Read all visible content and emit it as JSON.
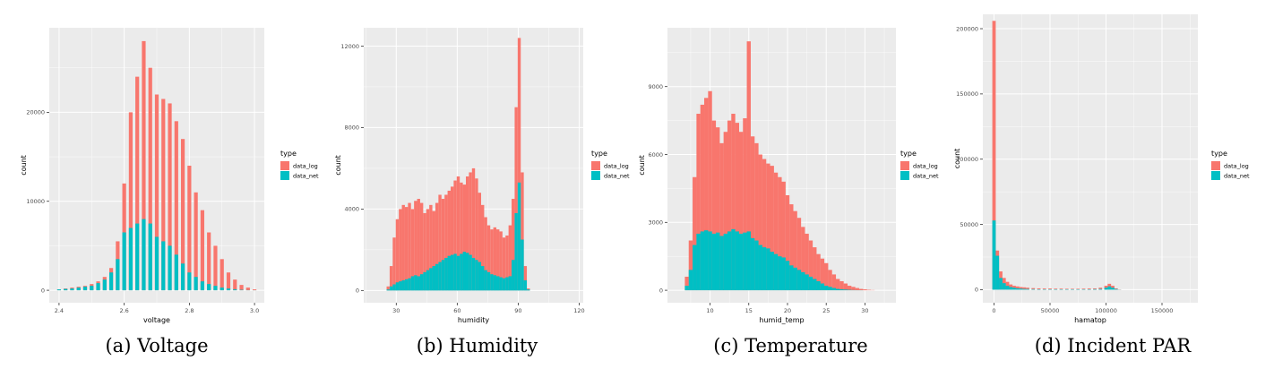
{
  "colors": {
    "data_log": "#F8766D",
    "data_net": "#00BFC4",
    "panel_bg": "#EBEBEB",
    "grid": "#FFFFFF"
  },
  "chart_data": [
    {
      "type": "bar",
      "caption": "(a) Voltage",
      "xlabel": "voltage",
      "ylabel": "count",
      "xlim": [
        2.37,
        3.03
      ],
      "ylim": [
        -1400,
        29500
      ],
      "x_ticks": [
        2.4,
        2.6,
        2.8,
        3.0
      ],
      "x_tick_labels": [
        "2.4",
        "2.6",
        "2.8",
        "3.0"
      ],
      "y_ticks": [
        0,
        10000,
        20000
      ],
      "y_tick_labels": [
        "0",
        "10000",
        "20000"
      ],
      "legend": {
        "title": "type",
        "entries": [
          "data_log",
          "data_net"
        ],
        "placement": "right"
      },
      "x": [
        2.4,
        2.42,
        2.44,
        2.46,
        2.48,
        2.5,
        2.52,
        2.54,
        2.56,
        2.58,
        2.6,
        2.62,
        2.64,
        2.66,
        2.68,
        2.7,
        2.72,
        2.74,
        2.76,
        2.78,
        2.8,
        2.82,
        2.84,
        2.86,
        2.88,
        2.9,
        2.92,
        2.94,
        2.96,
        2.98,
        3.0
      ],
      "series": [
        {
          "name": "data_log",
          "values": [
            100,
            200,
            300,
            400,
            500,
            700,
            1000,
            1500,
            2500,
            5500,
            12000,
            20000,
            24000,
            28000,
            25000,
            22000,
            21500,
            21000,
            19000,
            17000,
            14000,
            11000,
            9000,
            6500,
            5000,
            3500,
            2000,
            1200,
            600,
            300,
            100
          ]
        },
        {
          "name": "data_net",
          "values": [
            100,
            150,
            200,
            300,
            400,
            500,
            800,
            1200,
            2000,
            3500,
            6500,
            7000,
            7500,
            8000,
            7500,
            6000,
            5500,
            5000,
            4000,
            3000,
            2000,
            1500,
            1000,
            700,
            500,
            300,
            200,
            100,
            50,
            20,
            10
          ]
        }
      ]
    },
    {
      "type": "bar",
      "caption": "(b) Humidity",
      "xlabel": "humidity",
      "ylabel": "count",
      "xlim": [
        14,
        122
      ],
      "ylim": [
        -600,
        12900
      ],
      "x_ticks": [
        30,
        60,
        90,
        120
      ],
      "x_tick_labels": [
        "30",
        "60",
        "90",
        "120"
      ],
      "y_ticks": [
        0,
        4000,
        8000,
        12000
      ],
      "y_tick_labels": [
        "0",
        "4000",
        "8000",
        "12000"
      ],
      "legend": {
        "title": "type",
        "entries": [
          "data_log",
          "data_net"
        ],
        "placement": "right"
      },
      "x": [
        26,
        27.5,
        29,
        30.5,
        32,
        33.5,
        35,
        36.5,
        38,
        39.5,
        41,
        42.5,
        44,
        45.5,
        47,
        48.5,
        50,
        51.5,
        53,
        54.5,
        56,
        57.5,
        59,
        60.5,
        62,
        63.5,
        65,
        66.5,
        68,
        69.5,
        71,
        72.5,
        74,
        75.5,
        77,
        78.5,
        80,
        81.5,
        83,
        84.5,
        86,
        87.5,
        89,
        90.5,
        92,
        93.5,
        95
      ],
      "series": [
        {
          "name": "data_log",
          "values": [
            200,
            1200,
            2600,
            3500,
            4000,
            4200,
            4100,
            4300,
            4000,
            4400,
            4500,
            4300,
            3800,
            4000,
            4200,
            3900,
            4300,
            4700,
            4500,
            4700,
            4900,
            5100,
            5400,
            5600,
            5300,
            5200,
            5600,
            5800,
            6000,
            5500,
            4800,
            4200,
            3600,
            3200,
            3000,
            3100,
            3000,
            2900,
            2600,
            2700,
            3200,
            4500,
            9000,
            12400,
            5800,
            1200,
            100
          ]
        },
        {
          "name": "data_net",
          "values": [
            50,
            200,
            300,
            400,
            450,
            500,
            550,
            600,
            700,
            750,
            700,
            800,
            900,
            1000,
            1100,
            1200,
            1300,
            1400,
            1500,
            1600,
            1700,
            1750,
            1800,
            1700,
            1800,
            1900,
            1850,
            1750,
            1600,
            1500,
            1400,
            1200,
            1000,
            900,
            800,
            750,
            700,
            650,
            600,
            650,
            700,
            1500,
            3800,
            5300,
            2500,
            500,
            50
          ]
        }
      ]
    },
    {
      "type": "bar",
      "caption": "(c) Temperature",
      "xlabel": "humid_temp",
      "ylabel": "count",
      "xlim": [
        4.5,
        34
      ],
      "ylim": [
        -550,
        11600
      ],
      "x_ticks": [
        10,
        15,
        20,
        25,
        30
      ],
      "x_tick_labels": [
        "10",
        "15",
        "20",
        "25",
        "30"
      ],
      "y_ticks": [
        0,
        3000,
        6000,
        9000
      ],
      "y_tick_labels": [
        "0",
        "3000",
        "6000",
        "9000"
      ],
      "legend": {
        "title": "type",
        "entries": [
          "data_log",
          "data_net"
        ],
        "placement": "right"
      },
      "x": [
        7,
        7.5,
        8,
        8.5,
        9,
        9.5,
        10,
        10.5,
        11,
        11.5,
        12,
        12.5,
        13,
        13.5,
        14,
        14.5,
        15,
        15.5,
        16,
        16.5,
        17,
        17.5,
        18,
        18.5,
        19,
        19.5,
        20,
        20.5,
        21,
        21.5,
        22,
        22.5,
        23,
        23.5,
        24,
        24.5,
        25,
        25.5,
        26,
        26.5,
        27,
        27.5,
        28,
        28.5,
        29,
        29.5,
        30,
        30.5,
        31
      ],
      "series": [
        {
          "name": "data_log",
          "values": [
            600,
            2200,
            5000,
            7800,
            8200,
            8500,
            8800,
            7500,
            7200,
            6500,
            7000,
            7500,
            7800,
            7400,
            7000,
            7600,
            11000,
            6800,
            6500,
            6000,
            5800,
            5600,
            5500,
            5200,
            5000,
            4800,
            4200,
            3800,
            3500,
            3200,
            2800,
            2500,
            2200,
            1900,
            1600,
            1400,
            1200,
            900,
            700,
            500,
            400,
            300,
            200,
            150,
            100,
            60,
            40,
            20,
            10
          ]
        },
        {
          "name": "data_net",
          "values": [
            200,
            900,
            2000,
            2500,
            2600,
            2650,
            2600,
            2500,
            2550,
            2400,
            2500,
            2600,
            2700,
            2600,
            2500,
            2550,
            2600,
            2300,
            2200,
            2000,
            1900,
            1850,
            1700,
            1600,
            1500,
            1450,
            1300,
            1100,
            1000,
            900,
            800,
            700,
            600,
            500,
            400,
            300,
            200,
            150,
            100,
            60,
            40,
            30,
            20,
            10,
            5,
            5,
            0,
            0,
            0
          ]
        }
      ]
    },
    {
      "type": "bar",
      "caption": "(d) Incident PAR",
      "xlabel": "hamatop",
      "ylabel": "count",
      "xlim": [
        -10000,
        182000
      ],
      "ylim": [
        -10000,
        211000
      ],
      "x_ticks": [
        0,
        50000,
        100000,
        150000
      ],
      "x_tick_labels": [
        "0",
        "50000",
        "100000",
        "150000"
      ],
      "y_ticks": [
        0,
        50000,
        100000,
        150000,
        200000
      ],
      "y_tick_labels": [
        "0",
        "50000",
        "100000",
        "150000",
        "200000"
      ],
      "legend": {
        "title": "type",
        "entries": [
          "data_log",
          "data_net"
        ],
        "placement": "right"
      },
      "x": [
        0,
        3000,
        6000,
        9000,
        12000,
        15000,
        18000,
        21000,
        24000,
        27000,
        30000,
        35000,
        40000,
        45000,
        50000,
        55000,
        60000,
        65000,
        70000,
        75000,
        80000,
        85000,
        90000,
        95000,
        100000,
        103000,
        106000,
        109000,
        112000
      ],
      "series": [
        {
          "name": "data_log",
          "values": [
            206000,
            30000,
            14000,
            9000,
            6000,
            4000,
            3000,
            2500,
            2000,
            1800,
            1500,
            1200,
            1000,
            900,
            900,
            800,
            800,
            700,
            700,
            700,
            800,
            900,
            1000,
            1500,
            3000,
            4500,
            3000,
            1000,
            200
          ]
        },
        {
          "name": "data_net",
          "values": [
            53000,
            26000,
            9000,
            5000,
            3000,
            2000,
            1500,
            1000,
            800,
            600,
            500,
            400,
            300,
            300,
            300,
            300,
            300,
            300,
            300,
            300,
            300,
            300,
            400,
            500,
            1500,
            2500,
            1500,
            500,
            100
          ]
        }
      ]
    }
  ]
}
